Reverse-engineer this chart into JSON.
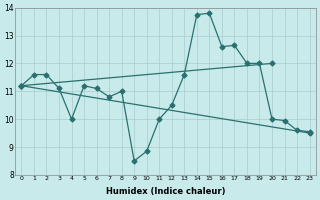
{
  "xlabel": "Humidex (Indice chaleur)",
  "ylabel": "",
  "bg_color": "#c8eaea",
  "grid_color": "#a8cccc",
  "line_color": "#2a7070",
  "xlim": [
    -0.5,
    23.5
  ],
  "ylim": [
    8,
    14
  ],
  "yticks": [
    8,
    9,
    10,
    11,
    12,
    13,
    14
  ],
  "xticks": [
    0,
    1,
    2,
    3,
    4,
    5,
    6,
    7,
    8,
    9,
    10,
    11,
    12,
    13,
    14,
    15,
    16,
    17,
    18,
    19,
    20,
    21,
    22,
    23
  ],
  "line1_x": [
    0,
    1,
    2,
    3,
    4,
    5,
    6,
    7,
    8,
    9,
    10,
    11,
    12,
    13,
    14,
    15,
    16,
    17,
    18,
    19,
    20,
    21,
    22,
    23
  ],
  "line1_y": [
    11.2,
    11.6,
    11.6,
    11.1,
    10.0,
    11.2,
    11.1,
    10.8,
    11.0,
    8.5,
    8.85,
    10.0,
    10.5,
    11.6,
    13.75,
    13.8,
    12.6,
    12.65,
    12.0,
    12.0,
    10.0,
    9.95,
    9.6,
    9.55
  ],
  "line2_x": [
    0,
    20
  ],
  "line2_y": [
    11.2,
    12.0
  ],
  "line3_x": [
    0,
    23
  ],
  "line3_y": [
    11.2,
    9.5
  ]
}
